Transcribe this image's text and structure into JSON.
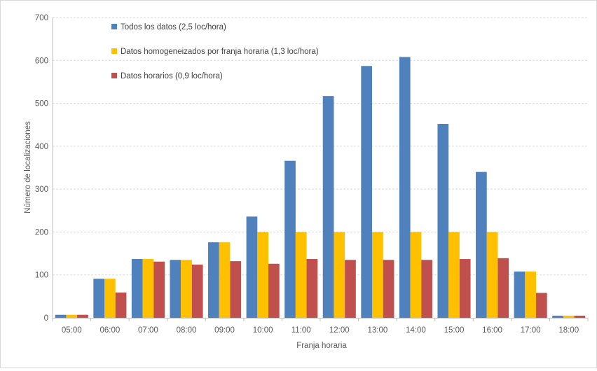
{
  "chart_data": {
    "type": "bar",
    "title": "",
    "xlabel": "Franja horaria",
    "ylabel": "Número de localizaciones",
    "ylim": [
      0,
      700
    ],
    "yticks": [
      0,
      100,
      200,
      300,
      400,
      500,
      600,
      700
    ],
    "grid": true,
    "legend_position": "top-left",
    "categories": [
      "05:00",
      "06:00",
      "07:00",
      "08:00",
      "09:00",
      "10:00",
      "11:00",
      "12:00",
      "13:00",
      "14:00",
      "15:00",
      "16:00",
      "17:00",
      "18:00"
    ],
    "series": [
      {
        "name": "Todos los datos (2,5 loc/hora)",
        "color": "#4f81bd",
        "values": [
          7,
          91,
          137,
          135,
          176,
          236,
          366,
          517,
          587,
          608,
          452,
          340,
          108,
          5
        ]
      },
      {
        "name": "Datos homogeneizados por franja horaria (1,3 loc/hora)",
        "color": "#ffc000",
        "values": [
          7,
          91,
          137,
          135,
          176,
          200,
          200,
          200,
          200,
          200,
          200,
          200,
          108,
          5
        ]
      },
      {
        "name": "Datos horarios (0,9 loc/hora)",
        "color": "#c0504d",
        "values": [
          7,
          59,
          131,
          124,
          132,
          126,
          137,
          135,
          135,
          135,
          137,
          139,
          58,
          5
        ]
      }
    ]
  }
}
